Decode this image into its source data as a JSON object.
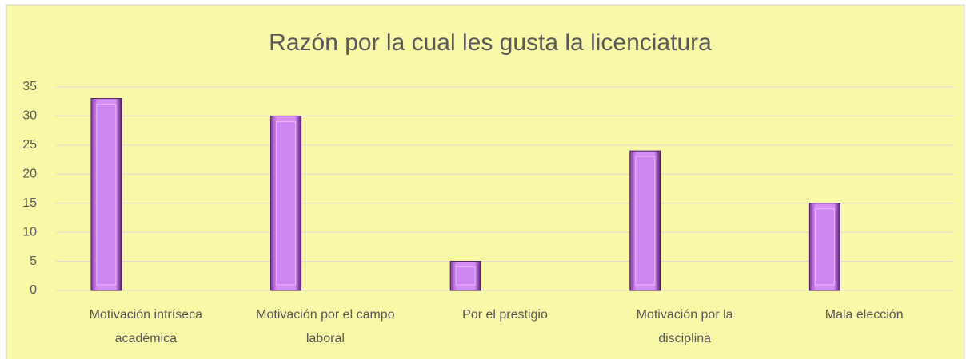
{
  "chart_data": {
    "type": "bar",
    "title": "Razón por la cual les gusta la licenciatura",
    "categories": [
      "Motivación intríseca académica",
      "Motivación por el campo laboral",
      "Por el prestigio",
      "Motivación por la disciplina",
      "Mala elección"
    ],
    "values": [
      33,
      30,
      5,
      24,
      15
    ],
    "color": "#cc88f0",
    "ylim": [
      0,
      35
    ],
    "yticks": [
      0,
      5,
      10,
      15,
      20,
      25,
      30,
      35
    ],
    "grid": true
  }
}
